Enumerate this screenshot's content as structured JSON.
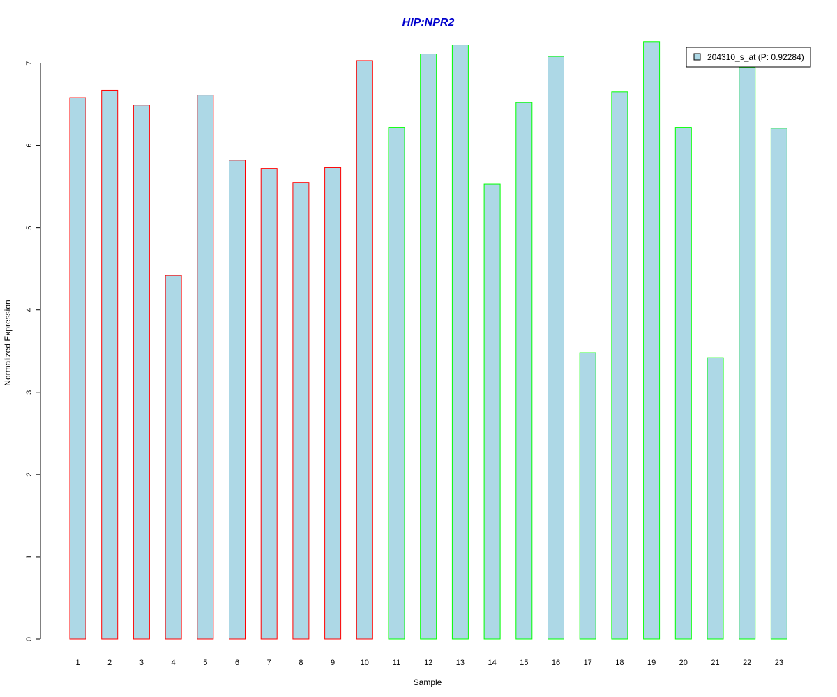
{
  "chart_data": {
    "type": "bar",
    "title": "HIP:NPR2",
    "title_color": "#0000CC",
    "xlabel": "Sample",
    "ylabel": "Normalized Expression",
    "categories": [
      "1",
      "2",
      "3",
      "4",
      "5",
      "6",
      "7",
      "8",
      "9",
      "10",
      "11",
      "12",
      "13",
      "14",
      "15",
      "16",
      "17",
      "18",
      "19",
      "20",
      "21",
      "22",
      "23"
    ],
    "series": [
      {
        "name": "204310_s_at (P: 0.92284)",
        "values": [
          6.58,
          6.67,
          6.49,
          4.42,
          6.61,
          5.82,
          5.72,
          5.55,
          5.73,
          7.03,
          6.22,
          7.11,
          7.22,
          5.53,
          6.52,
          7.08,
          3.48,
          6.65,
          7.26,
          6.22,
          3.42,
          6.95,
          6.21
        ],
        "fill_color": "#ADD8E6",
        "border_colors": [
          "#FF0000",
          "#FF0000",
          "#FF0000",
          "#FF0000",
          "#FF0000",
          "#FF0000",
          "#FF0000",
          "#FF0000",
          "#FF0000",
          "#FF0000",
          "#00FF00",
          "#00FF00",
          "#00FF00",
          "#00FF00",
          "#00FF00",
          "#00FF00",
          "#00FF00",
          "#00FF00",
          "#00FF00",
          "#00FF00",
          "#00FF00",
          "#00FF00",
          "#00FF00"
        ]
      }
    ],
    "yticks": [
      0,
      1,
      2,
      3,
      4,
      5,
      6,
      7
    ],
    "ylim": [
      0,
      7.3
    ],
    "grid": false,
    "legend_position": "top-right"
  }
}
